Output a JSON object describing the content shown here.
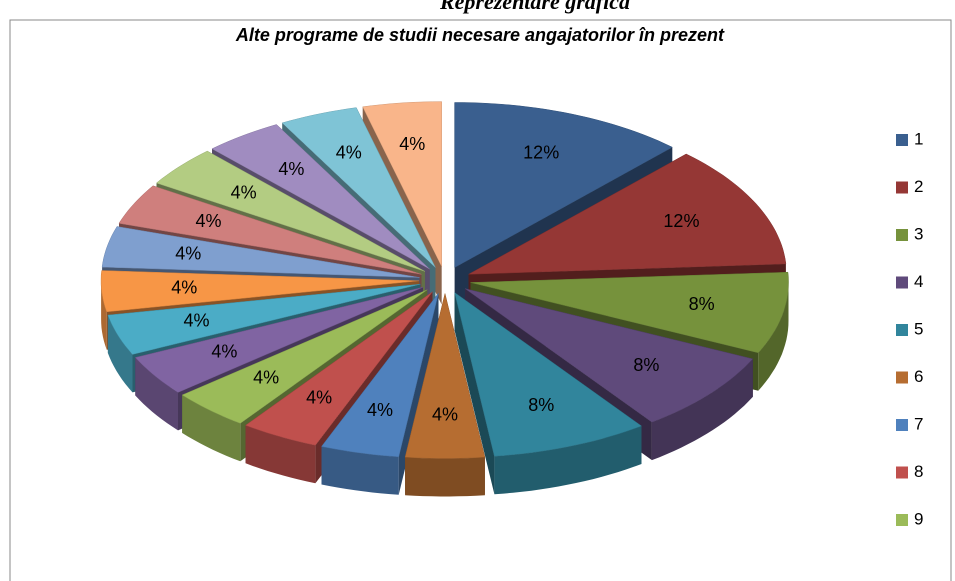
{
  "heading": "Reprezentare grafică",
  "chart_data": {
    "type": "pie",
    "title": "Alte programe de studii necesare angajatorilor în prezent",
    "categories": [
      "1",
      "2",
      "3",
      "4",
      "5",
      "6",
      "7",
      "8",
      "9",
      null,
      null,
      null,
      null,
      null,
      null,
      null,
      null,
      null
    ],
    "values": [
      12,
      12,
      8,
      8,
      8,
      4,
      4,
      4,
      4,
      4,
      4,
      4,
      4,
      4,
      4,
      4,
      4,
      4
    ],
    "value_labels": [
      "12%",
      "12%",
      "8%",
      "8%",
      "8%",
      "4%",
      "4%",
      "4%",
      "4%",
      "4%",
      "4%",
      "4%",
      "4%",
      "4%",
      "4%",
      "4%",
      "4%",
      "4%"
    ],
    "colors": [
      "#3A5F8F",
      "#953735",
      "#76923C",
      "#5F4A7B",
      "#31859C",
      "#B66D31",
      "#4F81BD",
      "#C0504D",
      "#9BBB59",
      "#8064A2",
      "#4BACC6",
      "#F79646",
      "#7F9FCF",
      "#CF7F7D",
      "#B3CC82",
      "#A08CC0",
      "#7FC4D6",
      "#F9B58A"
    ],
    "legend": "right"
  }
}
